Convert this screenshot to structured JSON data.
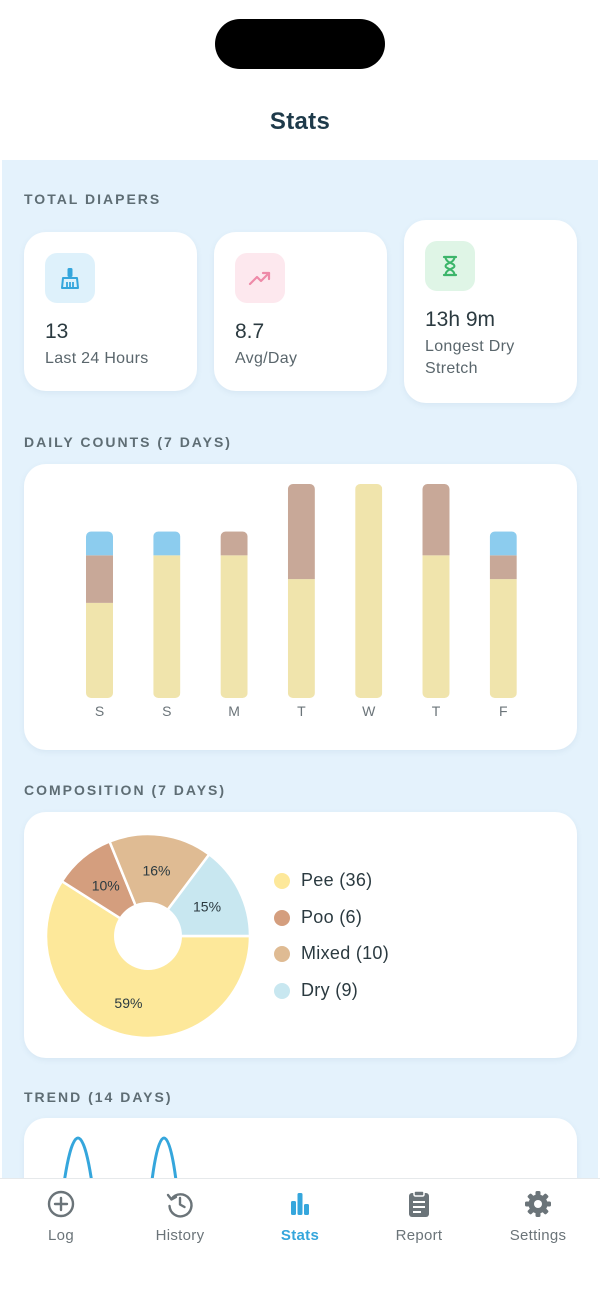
{
  "nav": {
    "title": "Stats"
  },
  "sections": {
    "total": "TOTAL DIAPERS",
    "daily": "DAILY COUNTS (7 DAYS)",
    "composition": "COMPOSITION (7 DAYS)",
    "trend": "TREND (14 DAYS)"
  },
  "stats": [
    {
      "value": "13",
      "label": "Last 24 Hours",
      "icon": "broom-icon"
    },
    {
      "value": "8.7",
      "label": "Avg/Day",
      "icon": "trending-up-icon"
    },
    {
      "value": "13h 9m",
      "label": "Longest Dry Stretch",
      "icon": "hourglass-icon"
    }
  ],
  "colors": {
    "pee": "#f0e4ac",
    "poo": "#c8a898",
    "dry": "#8cccee",
    "accent": "#35a6dc"
  },
  "chart_data": [
    {
      "type": "bar",
      "stacked": true,
      "categories": [
        "S",
        "S",
        "M",
        "T",
        "W",
        "T",
        "F"
      ],
      "series": [
        {
          "name": "Pee",
          "values": [
            4,
            6,
            6,
            5,
            9,
            6,
            5
          ]
        },
        {
          "name": "Poo",
          "values": [
            2,
            0,
            1,
            4,
            0,
            3,
            1
          ]
        },
        {
          "name": "Dry",
          "values": [
            1,
            1,
            0,
            0,
            0,
            0,
            1
          ]
        }
      ],
      "ylim": [
        0,
        9
      ]
    },
    {
      "type": "pie",
      "slices": [
        {
          "name": "Pee",
          "value": 36,
          "pct": "59%",
          "color": "#fde89a"
        },
        {
          "name": "Poo",
          "value": 6,
          "pct": "10%",
          "color": "#d49e7e"
        },
        {
          "name": "Mixed",
          "value": 10,
          "pct": "16%",
          "color": "#dfbb93"
        },
        {
          "name": "Dry",
          "value": 9,
          "pct": "15%",
          "color": "#c8e7f0"
        }
      ]
    }
  ],
  "legend": [
    "Pee (36)",
    "Poo (6)",
    "Mixed (10)",
    "Dry (9)"
  ],
  "tabs": [
    {
      "label": "Log",
      "icon": "plus-circle-icon",
      "active": false
    },
    {
      "label": "History",
      "icon": "history-icon",
      "active": false
    },
    {
      "label": "Stats",
      "icon": "bar-chart-icon",
      "active": true
    },
    {
      "label": "Report",
      "icon": "clipboard-icon",
      "active": false
    },
    {
      "label": "Settings",
      "icon": "gear-icon",
      "active": false
    }
  ]
}
